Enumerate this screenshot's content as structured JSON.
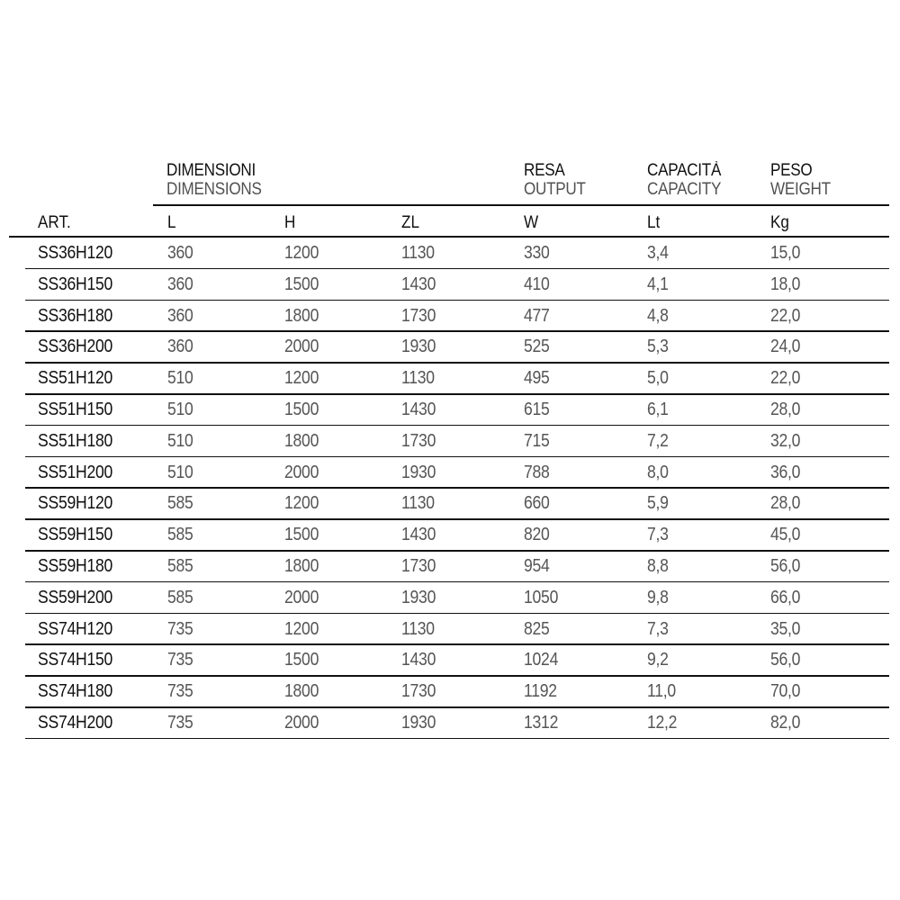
{
  "header": {
    "dimensioni": "DIMENSIONI",
    "dimensions": "DIMENSIONS",
    "resa": "RESA",
    "output": "OUTPUT",
    "capacita": "CAPACITÀ",
    "capacity": "CAPACITY",
    "peso": "PESO",
    "weight": "WEIGHT"
  },
  "columns": [
    "ART.",
    "L",
    "H",
    "ZL",
    "W",
    "Lt",
    "Kg"
  ],
  "rows": [
    [
      "SS36H120",
      "360",
      "1200",
      "1130",
      "330",
      "3,4",
      "15,0"
    ],
    [
      "SS36H150",
      "360",
      "1500",
      "1430",
      "410",
      "4,1",
      "18,0"
    ],
    [
      "SS36H180",
      "360",
      "1800",
      "1730",
      "477",
      "4,8",
      "22,0"
    ],
    [
      "SS36H200",
      "360",
      "2000",
      "1930",
      "525",
      "5,3",
      "24,0"
    ],
    [
      "SS51H120",
      "510",
      "1200",
      "1130",
      "495",
      "5,0",
      "22,0"
    ],
    [
      "SS51H150",
      "510",
      "1500",
      "1430",
      "615",
      "6,1",
      "28,0"
    ],
    [
      "SS51H180",
      "510",
      "1800",
      "1730",
      "715",
      "7,2",
      "32,0"
    ],
    [
      "SS51H200",
      "510",
      "2000",
      "1930",
      "788",
      "8,0",
      "36,0"
    ],
    [
      "SS59H120",
      "585",
      "1200",
      "1130",
      "660",
      "5,9",
      "28,0"
    ],
    [
      "SS59H150",
      "585",
      "1500",
      "1430",
      "820",
      "7,3",
      "45,0"
    ],
    [
      "SS59H180",
      "585",
      "1800",
      "1730",
      "954",
      "8,8",
      "56,0"
    ],
    [
      "SS59H200",
      "585",
      "2000",
      "1930",
      "1050",
      "9,8",
      "66,0"
    ],
    [
      "SS74H120",
      "735",
      "1200",
      "1130",
      "825",
      "7,3",
      "35,0"
    ],
    [
      "SS74H150",
      "735",
      "1500",
      "1430",
      "1024",
      "9,2",
      "56,0"
    ],
    [
      "SS74H180",
      "735",
      "1800",
      "1730",
      "1192",
      "11,0",
      "70,0"
    ],
    [
      "SS74H200",
      "735",
      "2000",
      "1930",
      "1312",
      "12,2",
      "82,0"
    ]
  ]
}
